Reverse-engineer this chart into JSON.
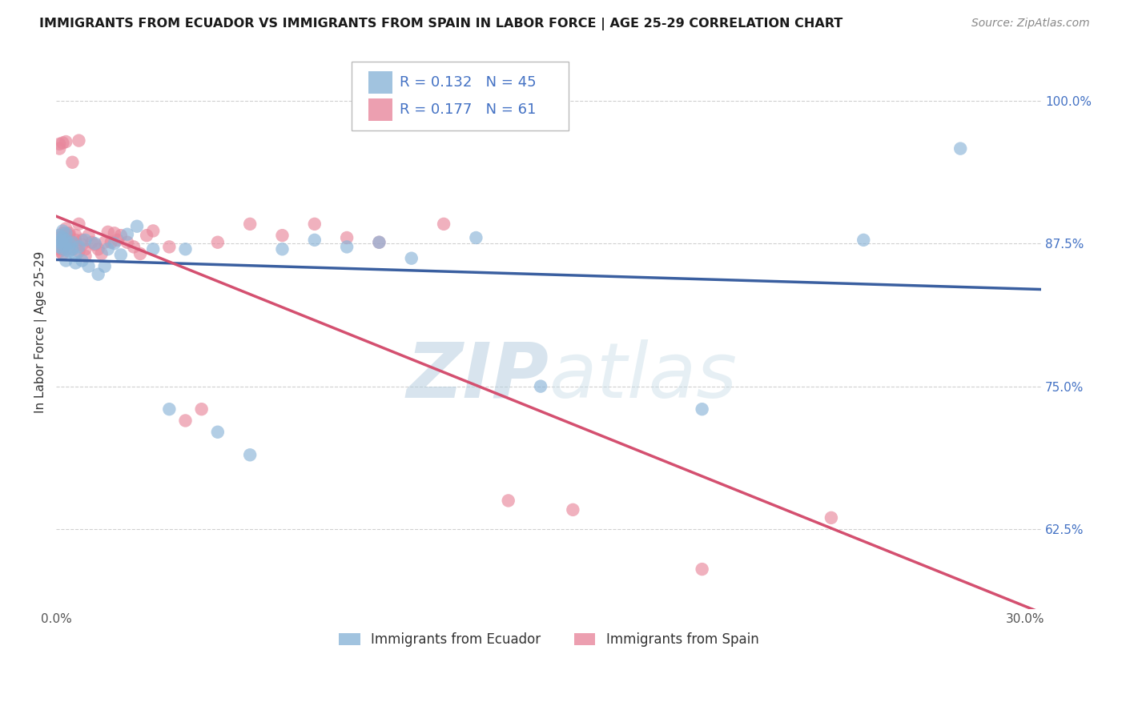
{
  "title": "IMMIGRANTS FROM ECUADOR VS IMMIGRANTS FROM SPAIN IN LABOR FORCE | AGE 25-29 CORRELATION CHART",
  "source": "Source: ZipAtlas.com",
  "ylabel": "In Labor Force | Age 25-29",
  "xlim": [
    0.0,
    0.305
  ],
  "ylim": [
    0.555,
    1.04
  ],
  "xticks": [
    0.0,
    0.05,
    0.1,
    0.15,
    0.2,
    0.25,
    0.3
  ],
  "xticklabels": [
    "0.0%",
    "",
    "",
    "",
    "",
    "",
    "30.0%"
  ],
  "yticks": [
    0.625,
    0.75,
    0.875,
    1.0
  ],
  "yticklabels": [
    "62.5%",
    "75.0%",
    "87.5%",
    "100.0%"
  ],
  "ecuador_color": "#8ab4d8",
  "spain_color": "#e8879c",
  "ecuador_line_color": "#3a5fa0",
  "spain_line_color": "#d45070",
  "legend_text_color": "#4472c4",
  "ecuador_R": 0.132,
  "ecuador_N": 45,
  "spain_R": 0.177,
  "spain_N": 61,
  "ecuador_x": [
    0.001,
    0.001,
    0.001,
    0.001,
    0.002,
    0.002,
    0.002,
    0.002,
    0.003,
    0.003,
    0.003,
    0.003,
    0.004,
    0.004,
    0.005,
    0.005,
    0.006,
    0.006,
    0.007,
    0.008,
    0.009,
    0.01,
    0.012,
    0.013,
    0.015,
    0.016,
    0.018,
    0.02,
    0.022,
    0.025,
    0.03,
    0.035,
    0.04,
    0.05,
    0.06,
    0.07,
    0.08,
    0.09,
    0.1,
    0.11,
    0.13,
    0.15,
    0.2,
    0.25,
    0.28
  ],
  "ecuador_y": [
    0.878,
    0.882,
    0.876,
    0.872,
    0.886,
    0.88,
    0.875,
    0.87,
    0.884,
    0.878,
    0.87,
    0.86,
    0.875,
    0.868,
    0.876,
    0.87,
    0.858,
    0.864,
    0.872,
    0.86,
    0.878,
    0.855,
    0.875,
    0.848,
    0.855,
    0.87,
    0.875,
    0.865,
    0.883,
    0.89,
    0.87,
    0.73,
    0.87,
    0.71,
    0.69,
    0.87,
    0.878,
    0.872,
    0.876,
    0.862,
    0.88,
    0.75,
    0.73,
    0.878,
    0.958
  ],
  "spain_x": [
    0.001,
    0.001,
    0.001,
    0.001,
    0.001,
    0.001,
    0.001,
    0.002,
    0.002,
    0.002,
    0.002,
    0.002,
    0.003,
    0.003,
    0.003,
    0.003,
    0.004,
    0.004,
    0.004,
    0.005,
    0.005,
    0.005,
    0.006,
    0.006,
    0.007,
    0.007,
    0.007,
    0.008,
    0.008,
    0.009,
    0.009,
    0.01,
    0.011,
    0.012,
    0.013,
    0.014,
    0.015,
    0.016,
    0.017,
    0.018,
    0.019,
    0.02,
    0.022,
    0.024,
    0.026,
    0.028,
    0.03,
    0.035,
    0.04,
    0.045,
    0.05,
    0.06,
    0.07,
    0.08,
    0.09,
    0.1,
    0.12,
    0.14,
    0.16,
    0.2,
    0.24
  ],
  "spain_y": [
    0.88,
    0.876,
    0.962,
    0.87,
    0.874,
    0.958,
    0.868,
    0.884,
    0.878,
    0.963,
    0.87,
    0.866,
    0.888,
    0.876,
    0.964,
    0.882,
    0.882,
    0.884,
    0.876,
    0.87,
    0.946,
    0.876,
    0.882,
    0.878,
    0.892,
    0.868,
    0.965,
    0.878,
    0.874,
    0.87,
    0.864,
    0.882,
    0.876,
    0.874,
    0.87,
    0.866,
    0.876,
    0.885,
    0.876,
    0.884,
    0.878,
    0.882,
    0.876,
    0.872,
    0.866,
    0.882,
    0.886,
    0.872,
    0.72,
    0.73,
    0.876,
    0.892,
    0.882,
    0.892,
    0.88,
    0.876,
    0.892,
    0.65,
    0.642,
    0.59,
    0.635
  ],
  "watermark_zip": "ZIP",
  "watermark_atlas": "atlas",
  "background_color": "#ffffff",
  "grid_color": "#d0d0d0",
  "title_fontsize": 11.5,
  "source_fontsize": 10,
  "axis_label_fontsize": 11,
  "tick_fontsize": 11,
  "legend_fontsize": 13,
  "legend_label_ecuador": "Immigrants from Ecuador",
  "legend_label_spain": "Immigrants from Spain"
}
